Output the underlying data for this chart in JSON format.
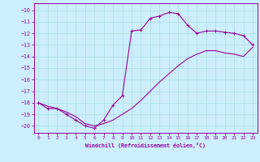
{
  "xlabel": "Windchill (Refroidissement éolien,°C)",
  "bg_color": "#cceeff",
  "grid_color": "#aadddd",
  "line_color": "#990099",
  "x_ticks": [
    0,
    1,
    2,
    3,
    4,
    5,
    6,
    7,
    8,
    9,
    10,
    11,
    12,
    13,
    14,
    15,
    16,
    17,
    18,
    19,
    20,
    21,
    22,
    23
  ],
  "y_ticks": [
    -10,
    -11,
    -12,
    -13,
    -14,
    -15,
    -16,
    -17,
    -18,
    -19,
    -20
  ],
  "ylim": [
    -20.6,
    -9.4
  ],
  "xlim": [
    -0.5,
    23.5
  ],
  "curve1_x": [
    0,
    1,
    2,
    3,
    4,
    5,
    6,
    7,
    8,
    9,
    10,
    11,
    12,
    13,
    14,
    15,
    16,
    17,
    18,
    19,
    20,
    21,
    22,
    23
  ],
  "curve1_y": [
    -18.0,
    -18.5,
    -18.5,
    -19.0,
    -19.5,
    -20.0,
    -20.2,
    -19.5,
    -18.2,
    -17.4,
    -11.8,
    -11.7,
    -10.7,
    -10.5,
    -10.2,
    -10.3,
    -11.3,
    -12.0,
    -11.8,
    -11.8,
    -11.9,
    -12.0,
    -12.2,
    -13.0
  ],
  "curve2_x": [
    0,
    1,
    2,
    3,
    4,
    5,
    6,
    7,
    8,
    9,
    10,
    11,
    12,
    13,
    14,
    15,
    16,
    17,
    18,
    19,
    20,
    21,
    22,
    23
  ],
  "curve2_y": [
    -18.0,
    -18.3,
    -18.5,
    -18.8,
    -19.2,
    -19.8,
    -20.0,
    -19.8,
    -19.5,
    -19.0,
    -18.5,
    -17.8,
    -17.0,
    -16.2,
    -15.5,
    -14.8,
    -14.2,
    -13.8,
    -13.5,
    -13.5,
    -13.7,
    -13.8,
    -14.0,
    -13.2
  ]
}
